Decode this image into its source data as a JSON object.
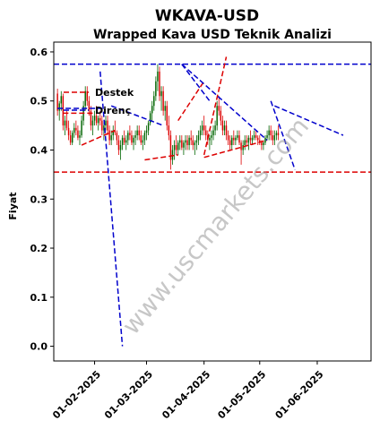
{
  "chart_data": {
    "type": "candlestick",
    "title": "WKAVA-USD",
    "subtitle": "Wrapped Kava USD Teknik Analizi",
    "ylabel": "Fiyat",
    "xlabel": "",
    "ylim": [
      -0.03,
      0.62
    ],
    "xlim": [
      "2025-01-10",
      "2025-06-30"
    ],
    "y_ticks": [
      "0.0",
      "0.1",
      "0.2",
      "0.3",
      "0.4",
      "0.5",
      "0.6"
    ],
    "x_ticks": [
      "01-02-2025",
      "01-03-2025",
      "01-04-2025",
      "01-05-2025",
      "01-06-2025"
    ],
    "legend": {
      "placement": "upper-left",
      "entries": [
        {
          "label": "Destek",
          "color": "#dd0000",
          "style": "dashed"
        },
        {
          "label": "Direnç",
          "color": "#0000cc",
          "style": "dashed"
        }
      ]
    },
    "horizontal_lines": [
      {
        "name": "Destek",
        "y": 0.355,
        "color": "#dd0000"
      },
      {
        "name": "Direnç",
        "y": 0.575,
        "color": "#0000cc"
      }
    ],
    "trend_lines": [
      {
        "kind": "support",
        "color": "#dd0000",
        "x": [
          "2025-01-15",
          "2025-01-31"
        ],
        "y": [
          0.475,
          0.475
        ]
      },
      {
        "kind": "support",
        "color": "#dd0000",
        "x": [
          "2025-01-25",
          "2025-02-12"
        ],
        "y": [
          0.41,
          0.44
        ]
      },
      {
        "kind": "support",
        "color": "#dd0000",
        "x": [
          "2025-02-28",
          "2025-03-18"
        ],
        "y": [
          0.38,
          0.39
        ]
      },
      {
        "kind": "support",
        "color": "#dd0000",
        "x": [
          "2025-03-18",
          "2025-04-01"
        ],
        "y": [
          0.46,
          0.54
        ]
      },
      {
        "kind": "support",
        "color": "#dd0000",
        "x": [
          "2025-04-01",
          "2025-04-13"
        ],
        "y": [
          0.39,
          0.59
        ]
      },
      {
        "kind": "support",
        "color": "#dd0000",
        "x": [
          "2025-04-01",
          "2025-05-05"
        ],
        "y": [
          0.385,
          0.42
        ]
      },
      {
        "kind": "resistance",
        "color": "#0000cc",
        "x": [
          "2025-01-12",
          "2025-02-05"
        ],
        "y": [
          0.485,
          0.485
        ]
      },
      {
        "kind": "resistance",
        "color": "#0000cc",
        "x": [
          "2025-02-04",
          "2025-02-16"
        ],
        "y": [
          0.56,
          0.0
        ]
      },
      {
        "kind": "resistance",
        "color": "#0000cc",
        "x": [
          "2025-02-10",
          "2025-03-10"
        ],
        "y": [
          0.49,
          0.45
        ]
      },
      {
        "kind": "resistance",
        "color": "#0000cc",
        "x": [
          "2025-03-20",
          "2025-04-04"
        ],
        "y": [
          0.575,
          0.5
        ]
      },
      {
        "kind": "resistance",
        "color": "#0000cc",
        "x": [
          "2025-03-20",
          "2025-05-05"
        ],
        "y": [
          0.575,
          0.42
        ]
      },
      {
        "kind": "resistance",
        "color": "#0000cc",
        "x": [
          "2025-05-07",
          "2025-05-20"
        ],
        "y": [
          0.5,
          0.36
        ]
      },
      {
        "kind": "resistance",
        "color": "#0000cc",
        "x": [
          "2025-05-09",
          "2025-06-15"
        ],
        "y": [
          0.49,
          0.43
        ]
      }
    ],
    "series": [
      {
        "name": "WKAVA-USD",
        "start_date": "2025-01-12",
        "step_days": 1,
        "up_color": "#006400",
        "down_color": "#dd0000",
        "ohlc": [
          [
            0.515,
            0.525,
            0.47,
            0.48
          ],
          [
            0.48,
            0.5,
            0.46,
            0.495
          ],
          [
            0.495,
            0.52,
            0.48,
            0.51
          ],
          [
            0.51,
            0.515,
            0.44,
            0.45
          ],
          [
            0.45,
            0.47,
            0.43,
            0.46
          ],
          [
            0.46,
            0.48,
            0.44,
            0.445
          ],
          [
            0.445,
            0.46,
            0.42,
            0.43
          ],
          [
            0.43,
            0.44,
            0.41,
            0.415
          ],
          [
            0.415,
            0.44,
            0.41,
            0.435
          ],
          [
            0.435,
            0.455,
            0.425,
            0.445
          ],
          [
            0.445,
            0.46,
            0.43,
            0.44
          ],
          [
            0.44,
            0.45,
            0.42,
            0.425
          ],
          [
            0.425,
            0.44,
            0.41,
            0.43
          ],
          [
            0.43,
            0.47,
            0.425,
            0.46
          ],
          [
            0.46,
            0.5,
            0.45,
            0.49
          ],
          [
            0.49,
            0.53,
            0.48,
            0.52
          ],
          [
            0.52,
            0.53,
            0.49,
            0.5
          ],
          [
            0.5,
            0.51,
            0.47,
            0.48
          ],
          [
            0.48,
            0.49,
            0.44,
            0.45
          ],
          [
            0.45,
            0.47,
            0.43,
            0.46
          ],
          [
            0.46,
            0.48,
            0.45,
            0.47
          ],
          [
            0.47,
            0.49,
            0.45,
            0.455
          ],
          [
            0.455,
            0.47,
            0.44,
            0.465
          ],
          [
            0.465,
            0.48,
            0.45,
            0.46
          ],
          [
            0.46,
            0.47,
            0.43,
            0.44
          ],
          [
            0.44,
            0.46,
            0.42,
            0.45
          ],
          [
            0.45,
            0.47,
            0.44,
            0.46
          ],
          [
            0.46,
            0.47,
            0.43,
            0.44
          ],
          [
            0.44,
            0.45,
            0.41,
            0.42
          ],
          [
            0.42,
            0.44,
            0.41,
            0.43
          ],
          [
            0.43,
            0.45,
            0.42,
            0.44
          ],
          [
            0.44,
            0.46,
            0.43,
            0.435
          ],
          [
            0.435,
            0.44,
            0.41,
            0.42
          ],
          [
            0.42,
            0.43,
            0.39,
            0.4
          ],
          [
            0.4,
            0.42,
            0.38,
            0.41
          ],
          [
            0.41,
            0.43,
            0.4,
            0.425
          ],
          [
            0.425,
            0.44,
            0.41,
            0.415
          ],
          [
            0.415,
            0.43,
            0.4,
            0.42
          ],
          [
            0.42,
            0.44,
            0.41,
            0.435
          ],
          [
            0.435,
            0.45,
            0.42,
            0.43
          ],
          [
            0.43,
            0.44,
            0.41,
            0.415
          ],
          [
            0.415,
            0.43,
            0.4,
            0.425
          ],
          [
            0.425,
            0.44,
            0.41,
            0.43
          ],
          [
            0.43,
            0.45,
            0.42,
            0.44
          ],
          [
            0.44,
            0.45,
            0.42,
            0.43
          ],
          [
            0.43,
            0.44,
            0.41,
            0.415
          ],
          [
            0.415,
            0.43,
            0.4,
            0.42
          ],
          [
            0.42,
            0.44,
            0.41,
            0.435
          ],
          [
            0.435,
            0.45,
            0.42,
            0.44
          ],
          [
            0.44,
            0.46,
            0.43,
            0.455
          ],
          [
            0.455,
            0.48,
            0.45,
            0.475
          ],
          [
            0.475,
            0.5,
            0.46,
            0.49
          ],
          [
            0.49,
            0.52,
            0.48,
            0.51
          ],
          [
            0.51,
            0.55,
            0.5,
            0.54
          ],
          [
            0.54,
            0.575,
            0.52,
            0.56
          ],
          [
            0.56,
            0.57,
            0.5,
            0.51
          ],
          [
            0.51,
            0.53,
            0.48,
            0.52
          ],
          [
            0.52,
            0.53,
            0.47,
            0.48
          ],
          [
            0.48,
            0.5,
            0.46,
            0.49
          ],
          [
            0.49,
            0.5,
            0.44,
            0.45
          ],
          [
            0.45,
            0.47,
            0.42,
            0.43
          ],
          [
            0.43,
            0.44,
            0.36,
            0.38
          ],
          [
            0.38,
            0.41,
            0.37,
            0.4
          ],
          [
            0.4,
            0.42,
            0.38,
            0.41
          ],
          [
            0.41,
            0.43,
            0.39,
            0.4
          ],
          [
            0.4,
            0.42,
            0.39,
            0.415
          ],
          [
            0.415,
            0.43,
            0.4,
            0.42
          ],
          [
            0.42,
            0.43,
            0.4,
            0.405
          ],
          [
            0.405,
            0.42,
            0.39,
            0.415
          ],
          [
            0.415,
            0.43,
            0.4,
            0.42
          ],
          [
            0.42,
            0.43,
            0.4,
            0.41
          ],
          [
            0.41,
            0.43,
            0.4,
            0.425
          ],
          [
            0.425,
            0.44,
            0.41,
            0.42
          ],
          [
            0.42,
            0.43,
            0.4,
            0.41
          ],
          [
            0.41,
            0.42,
            0.39,
            0.415
          ],
          [
            0.415,
            0.43,
            0.4,
            0.42
          ],
          [
            0.42,
            0.44,
            0.41,
            0.43
          ],
          [
            0.43,
            0.45,
            0.42,
            0.44
          ],
          [
            0.44,
            0.46,
            0.43,
            0.45
          ],
          [
            0.45,
            0.47,
            0.43,
            0.44
          ],
          [
            0.44,
            0.45,
            0.42,
            0.43
          ],
          [
            0.43,
            0.44,
            0.41,
            0.42
          ],
          [
            0.42,
            0.43,
            0.4,
            0.425
          ],
          [
            0.425,
            0.44,
            0.41,
            0.43
          ],
          [
            0.43,
            0.45,
            0.42,
            0.44
          ],
          [
            0.44,
            0.46,
            0.43,
            0.45
          ],
          [
            0.45,
            0.5,
            0.44,
            0.49
          ],
          [
            0.49,
            0.51,
            0.47,
            0.48
          ],
          [
            0.48,
            0.49,
            0.45,
            0.46
          ],
          [
            0.46,
            0.47,
            0.43,
            0.44
          ],
          [
            0.44,
            0.46,
            0.43,
            0.45
          ],
          [
            0.45,
            0.46,
            0.42,
            0.43
          ],
          [
            0.43,
            0.44,
            0.41,
            0.42
          ],
          [
            0.42,
            0.43,
            0.4,
            0.41
          ],
          [
            0.41,
            0.43,
            0.4,
            0.425
          ],
          [
            0.425,
            0.44,
            0.41,
            0.42
          ],
          [
            0.42,
            0.43,
            0.41,
            0.425
          ],
          [
            0.425,
            0.44,
            0.42,
            0.43
          ],
          [
            0.43,
            0.44,
            0.41,
            0.415
          ],
          [
            0.415,
            0.42,
            0.37,
            0.4
          ],
          [
            0.4,
            0.42,
            0.39,
            0.41
          ],
          [
            0.41,
            0.43,
            0.4,
            0.42
          ],
          [
            0.42,
            0.43,
            0.41,
            0.415
          ],
          [
            0.415,
            0.43,
            0.4,
            0.425
          ],
          [
            0.425,
            0.44,
            0.41,
            0.42
          ],
          [
            0.42,
            0.43,
            0.41,
            0.425
          ],
          [
            0.425,
            0.44,
            0.42,
            0.43
          ],
          [
            0.43,
            0.44,
            0.42,
            0.425
          ],
          [
            0.425,
            0.43,
            0.41,
            0.42
          ],
          [
            0.42,
            0.43,
            0.41,
            0.415
          ],
          [
            0.415,
            0.42,
            0.4,
            0.41
          ],
          [
            0.41,
            0.42,
            0.4,
            0.415
          ],
          [
            0.415,
            0.43,
            0.41,
            0.425
          ],
          [
            0.425,
            0.44,
            0.42,
            0.43
          ],
          [
            0.43,
            0.45,
            0.42,
            0.44
          ],
          [
            0.44,
            0.45,
            0.42,
            0.43
          ],
          [
            0.43,
            0.44,
            0.41,
            0.42
          ],
          [
            0.42,
            0.44,
            0.41,
            0.43
          ],
          [
            0.43,
            0.44,
            0.42,
            0.435
          ],
          [
            0.435,
            0.45,
            0.42,
            0.43
          ]
        ]
      }
    ],
    "watermark": "www.uscmarkets.com",
    "grid": false
  }
}
